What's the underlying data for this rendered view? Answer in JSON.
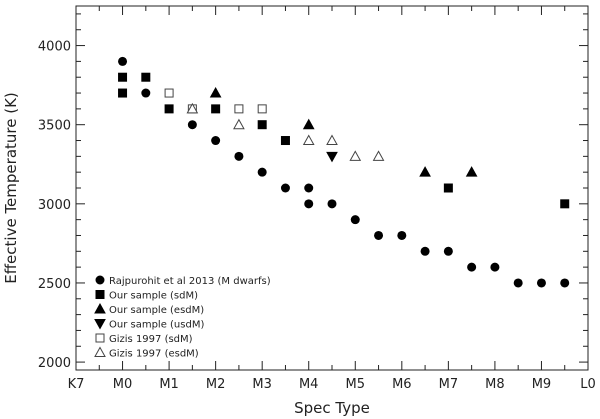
{
  "chart_data": {
    "type": "scatter",
    "xlabel": "Spec Type",
    "ylabel": "Effective Temperature (K)",
    "x_ticks": [
      "K7",
      "M0",
      "M1",
      "M2",
      "M3",
      "M4",
      "M5",
      "M6",
      "M7",
      "M8",
      "M9",
      "L0"
    ],
    "x_tick_values": [
      -1,
      0,
      1,
      2,
      3,
      4,
      5,
      6,
      7,
      8,
      9,
      10
    ],
    "xlim": [
      -1,
      10
    ],
    "ylim": [
      1950,
      4250
    ],
    "y_ticks": [
      2000,
      2500,
      3000,
      3500,
      4000
    ],
    "grid": false,
    "legend_position": "bottom-left",
    "series": [
      {
        "name": "Rajpurohit et al 2013 (M dwarfs)",
        "marker": "circle-filled",
        "x": [
          0,
          0.5,
          1.5,
          2,
          2.5,
          3,
          3.5,
          4,
          4,
          4.5,
          5,
          5.5,
          6,
          6.5,
          7,
          7.5,
          8,
          8.5,
          9,
          9.5
        ],
        "y": [
          3900,
          3700,
          3500,
          3400,
          3300,
          3200,
          3100,
          3100,
          3000,
          3000,
          2900,
          2800,
          2800,
          2700,
          2700,
          2600,
          2600,
          2500,
          2500,
          2500
        ]
      },
      {
        "name": "Our sample (sdM)",
        "marker": "square-filled",
        "x": [
          0,
          0,
          0.5,
          1,
          2,
          3,
          3.5,
          7,
          9.5
        ],
        "y": [
          3800,
          3700,
          3800,
          3600,
          3600,
          3500,
          3400,
          3100,
          3000
        ]
      },
      {
        "name": "Our sample (esdM)",
        "marker": "triangle-up-filled",
        "x": [
          2,
          4,
          6.5,
          7.5
        ],
        "y": [
          3700,
          3500,
          3200,
          3200
        ]
      },
      {
        "name": "Our sample (usdM)",
        "marker": "triangle-down-filled",
        "x": [
          4.5
        ],
        "y": [
          3300
        ]
      },
      {
        "name": "Gizis 1997 (sdM)",
        "marker": "square-open",
        "x": [
          1,
          1.5,
          2.5,
          3
        ],
        "y": [
          3700,
          3600,
          3600,
          3600
        ]
      },
      {
        "name": "Gizis 1997 (esdM)",
        "marker": "triangle-up-open",
        "x": [
          1.5,
          2.5,
          4,
          4.5,
          5,
          5.5
        ],
        "y": [
          3600,
          3500,
          3400,
          3400,
          3300,
          3300
        ]
      }
    ]
  }
}
